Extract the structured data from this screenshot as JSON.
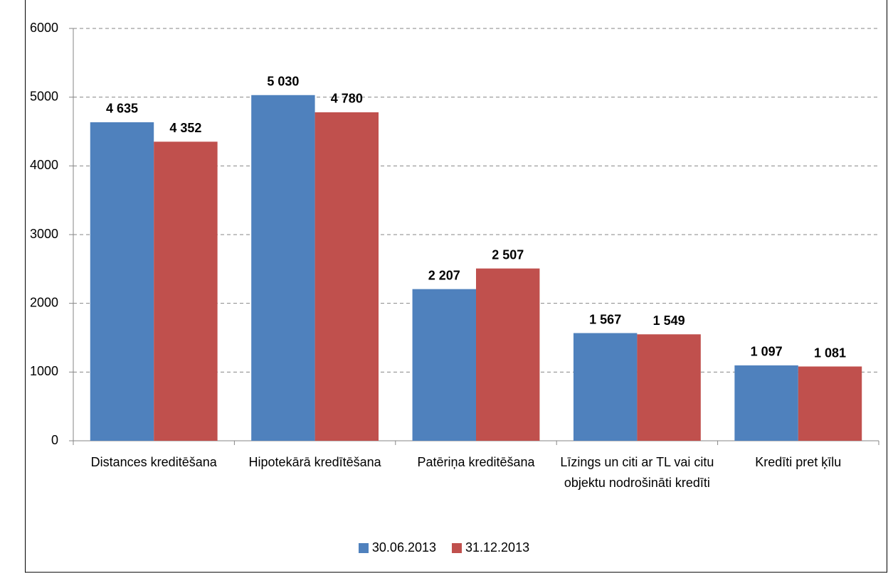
{
  "chart_data": {
    "type": "bar",
    "categories": [
      "Distances kreditēšana",
      "Hipotekārā kredītēšana",
      "Patēriņa kreditēšana",
      "Līzings un citi ar TL vai citu objektu nodrošināti kredīti",
      "Kredīti pret ķīlu"
    ],
    "series": [
      {
        "name": "30.06.2013",
        "color": "#4f81bd",
        "values": [
          4635,
          5030,
          2207,
          1567,
          1097
        ],
        "value_labels": [
          "4 635",
          "5 030",
          "2 207",
          "1 567",
          "1 097"
        ]
      },
      {
        "name": "31.12.2013",
        "color": "#c0504d",
        "values": [
          4352,
          4780,
          2507,
          1549,
          1081
        ],
        "value_labels": [
          "4 352",
          "4 780",
          "2 507",
          "1 549",
          "1 081"
        ]
      }
    ],
    "ylim": [
      0,
      6000
    ],
    "yticks": [
      0,
      1000,
      2000,
      3000,
      4000,
      5000,
      6000
    ],
    "grid": true,
    "legend": "bottom"
  }
}
